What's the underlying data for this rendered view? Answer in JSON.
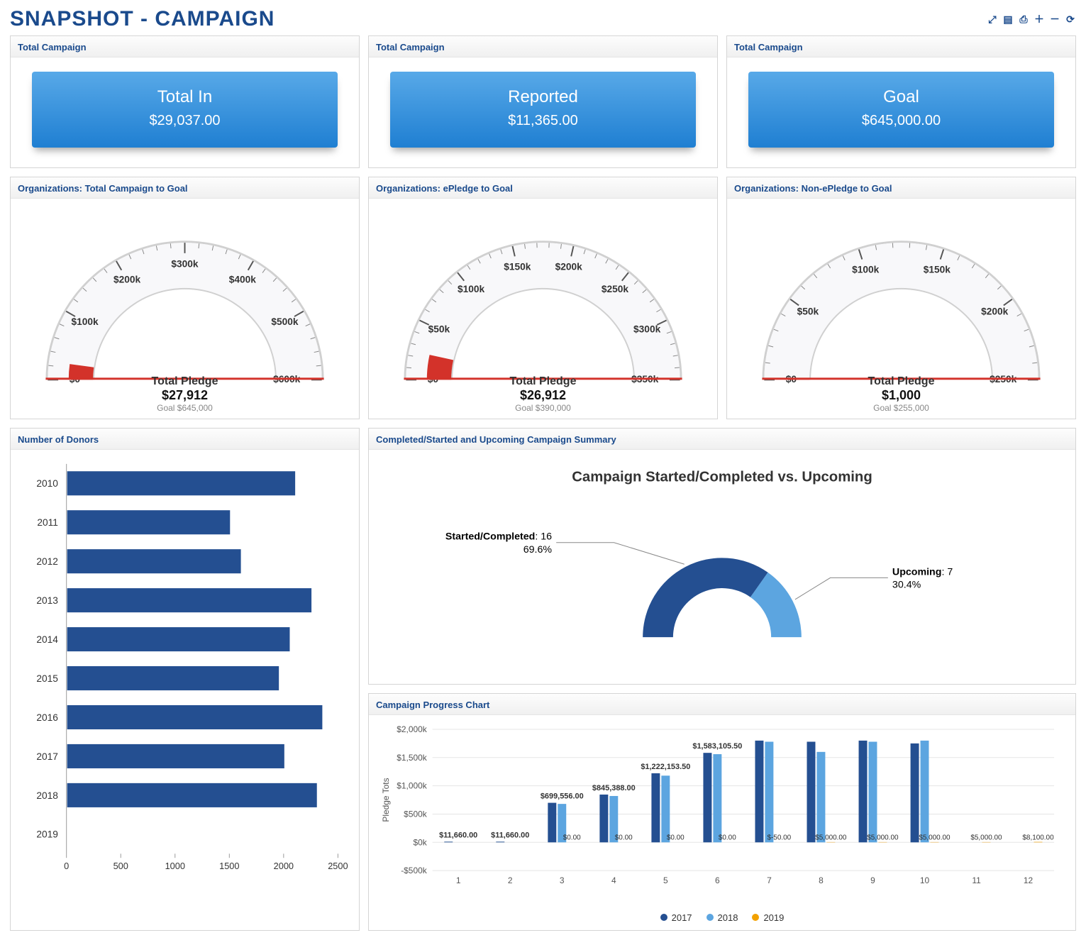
{
  "pageTitle": "SNAPSHOT - CAMPAIGN",
  "toolbar": {
    "expand": "⤢",
    "view": "▤",
    "print": "⎙",
    "add": "＋",
    "remove": "－",
    "refresh": "⟳"
  },
  "colors": {
    "brand": "#1a4a8c",
    "kpiGradTop": "#58a9e8",
    "kpiGradBottom": "#1f7fd2",
    "gaugeFace": "#f8f8fa",
    "gaugeTrackOuter": "#d0d0d0",
    "gaugeFill": "#d3322a",
    "barFill": "#244f91",
    "axisText": "#666666",
    "gridLine": "#e5e5e5",
    "donutDark": "#244f91",
    "donutLight": "#5ca5e0",
    "series2017": "#244f91",
    "series2018": "#5ca5e0",
    "series2019": "#f2a100"
  },
  "kpis": [
    {
      "header": "Total Campaign",
      "title": "Total In",
      "value": "$29,037.00"
    },
    {
      "header": "Total Campaign",
      "title": "Reported",
      "value": "$11,365.00"
    },
    {
      "header": "Total Campaign",
      "title": "Goal",
      "value": "$645,000.00"
    }
  ],
  "gauges": [
    {
      "header": "Organizations: Total Campaign to Goal",
      "label": "Total Pledge",
      "valueText": "$27,912",
      "goalText": "Goal $645,000",
      "min": 0,
      "max": 645000,
      "value": 27912,
      "majorTicks": [
        "$0",
        "$100k",
        "$200k",
        "$300k",
        "$400k",
        "$500k",
        "$600k"
      ]
    },
    {
      "header": "Organizations: ePledge to Goal",
      "label": "Total Pledge",
      "valueText": "$26,912",
      "goalText": "Goal $390,000",
      "min": 0,
      "max": 390000,
      "value": 26912,
      "majorTicks": [
        "$0",
        "$50k",
        "$100k",
        "$150k",
        "$200k",
        "$250k",
        "$300k",
        "$350k"
      ]
    },
    {
      "header": "Organizations: Non-ePledge to Goal",
      "label": "Total Pledge",
      "valueText": "$1,000",
      "goalText": "Goal $255,000",
      "min": 0,
      "max": 255000,
      "value": 1000,
      "majorTicks": [
        "$0",
        "$50k",
        "$100k",
        "$150k",
        "$200k",
        "$250k"
      ]
    }
  ],
  "donors": {
    "header": "Number of Donors",
    "years": [
      "2010",
      "2011",
      "2012",
      "2013",
      "2014",
      "2015",
      "2016",
      "2017",
      "2018",
      "2019"
    ],
    "values": [
      2100,
      1500,
      1600,
      2250,
      2050,
      1950,
      2350,
      2000,
      2300,
      0
    ],
    "xTicks": [
      0,
      500,
      1000,
      1500,
      2000,
      2500
    ],
    "xMax": 2500
  },
  "campaignSummary": {
    "header": "Completed/Started and Upcoming Campaign Summary",
    "chartTitle": "Campaign Started/Completed vs. Upcoming",
    "slices": [
      {
        "label": "Started/Completed",
        "count": 16,
        "pctText": "69.6%",
        "pct": 0.696,
        "colorKey": "donutDark"
      },
      {
        "label": "Upcoming",
        "count": 7,
        "pctText": "30.4%",
        "pct": 0.304,
        "colorKey": "donutLight"
      }
    ]
  },
  "progress": {
    "header": "Campaign Progress Chart",
    "yAxisLabel": "Pledge Tots",
    "yTicks": [
      "-$500k",
      "$0k",
      "$500k",
      "$1,000k",
      "$1,500k",
      "$2,000k"
    ],
    "yMin": -500000,
    "yMax": 2000000,
    "categories": [
      "1",
      "2",
      "3",
      "4",
      "5",
      "6",
      "7",
      "8",
      "9",
      "10",
      "11",
      "12"
    ],
    "pointLabels": [
      "$11,660.00",
      "$11,660.00",
      "$699,556.00",
      "$845,388.00",
      "$1,222,153.50",
      "$1,583,105.50",
      "",
      "",
      "",
      "",
      "",
      ""
    ],
    "smallLabels": [
      "",
      "",
      "$0.00",
      "$0.00",
      "$0.00",
      "$0.00",
      "$-50.00",
      "$5,000.00",
      "$5,000.00",
      "$5,000.00",
      "$5,000.00",
      "$8,100.00"
    ],
    "series": [
      {
        "name": "2017",
        "colorKey": "series2017",
        "values": [
          11660,
          11660,
          699556,
          845388,
          1222153,
          1583105,
          1800000,
          1780000,
          1800000,
          1750000,
          0,
          0
        ]
      },
      {
        "name": "2018",
        "colorKey": "series2018",
        "values": [
          0,
          0,
          680000,
          820000,
          1180000,
          1560000,
          1780000,
          1600000,
          1780000,
          1800000,
          0,
          0
        ]
      },
      {
        "name": "2019",
        "colorKey": "series2019",
        "values": [
          0,
          0,
          0,
          0,
          0,
          0,
          -50,
          5000,
          5000,
          5000,
          5000,
          8100
        ]
      }
    ]
  }
}
